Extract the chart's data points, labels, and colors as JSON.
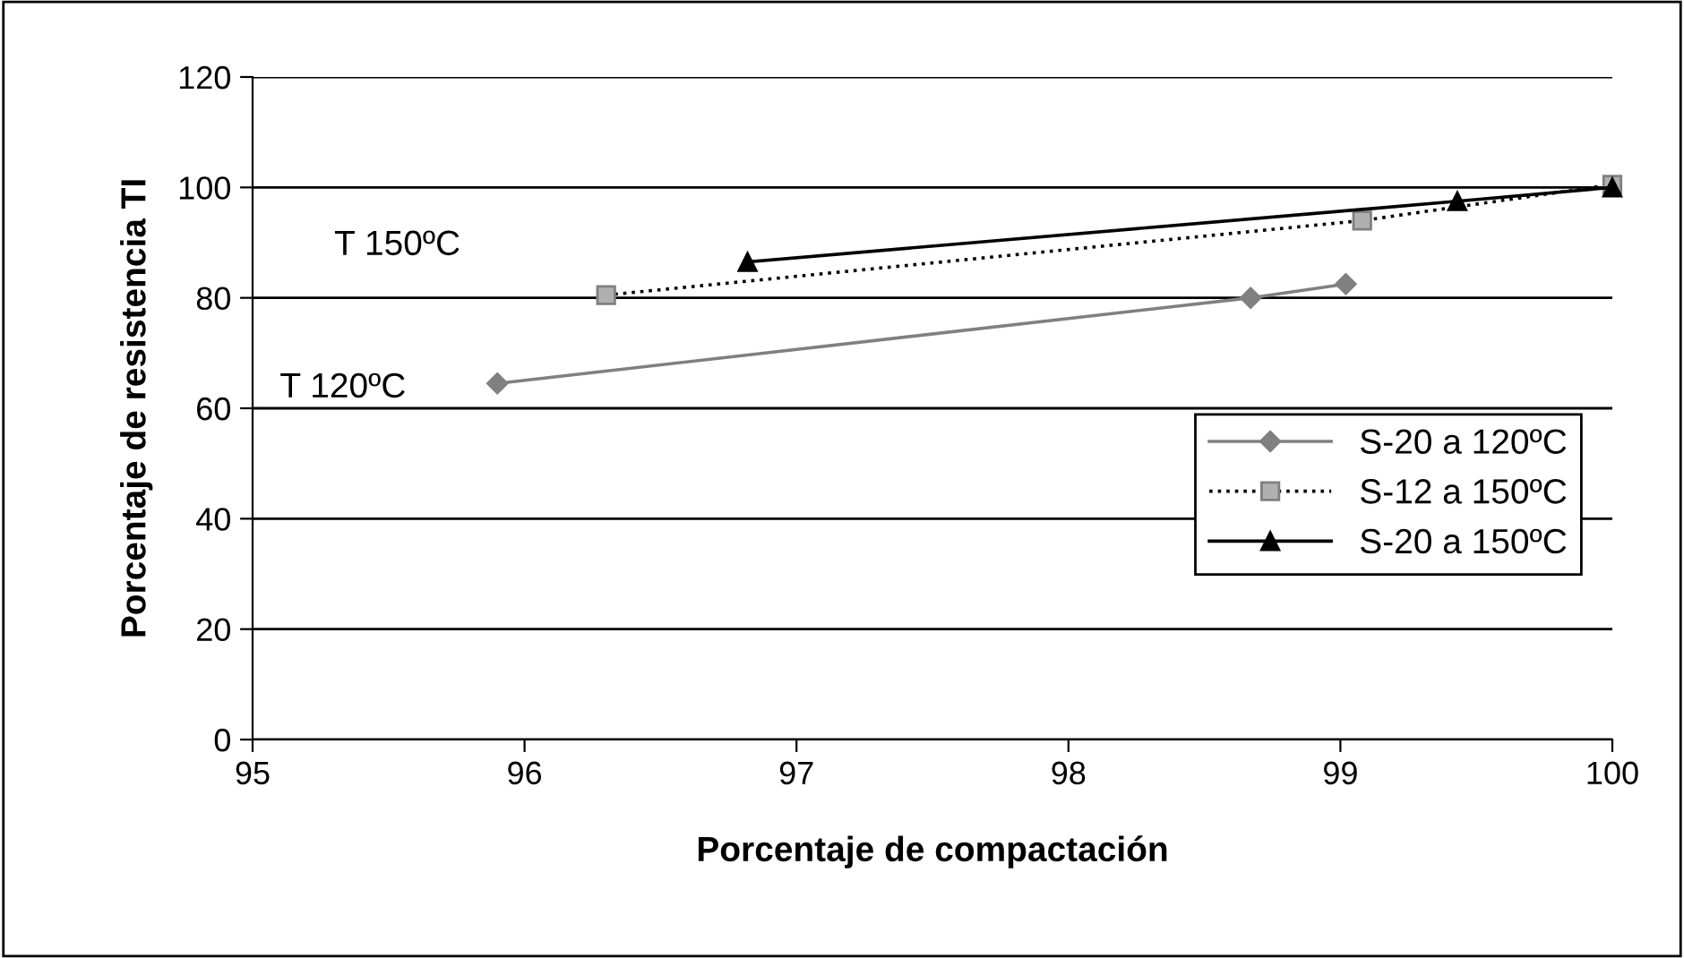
{
  "chart_data": {
    "type": "line",
    "xlabel": "Porcentaje de compactación",
    "ylabel": "Porcentaje de resistencia TI",
    "xlim": [
      95,
      100
    ],
    "xticks": [
      95,
      96,
      97,
      98,
      99,
      100
    ],
    "ylim": [
      0,
      120
    ],
    "yticks": [
      0,
      20,
      40,
      60,
      80,
      100,
      120
    ],
    "grid": "y",
    "legend": "right",
    "annotations": [
      "T 150ºC",
      "T 120ºC"
    ],
    "series": [
      {
        "name": "S-20 a 120ºC",
        "color": "#808080",
        "marker": "diamond",
        "line_style": "solid",
        "x": [
          95.9,
          98.67,
          99.02
        ],
        "values": [
          64.5,
          80,
          82.5
        ]
      },
      {
        "name": "S-12 a 150ºC",
        "color": "#b0b0b0",
        "marker": "square",
        "line_style": "dotted",
        "x": [
          96.3,
          99.08,
          100
        ],
        "values": [
          80.5,
          94,
          100.5
        ]
      },
      {
        "name": "S-20 a 150ºC",
        "color": "#000000",
        "marker": "triangle",
        "line_style": "solid",
        "x": [
          96.82,
          99.43,
          100
        ],
        "values": [
          86.5,
          97.5,
          100
        ]
      }
    ]
  }
}
